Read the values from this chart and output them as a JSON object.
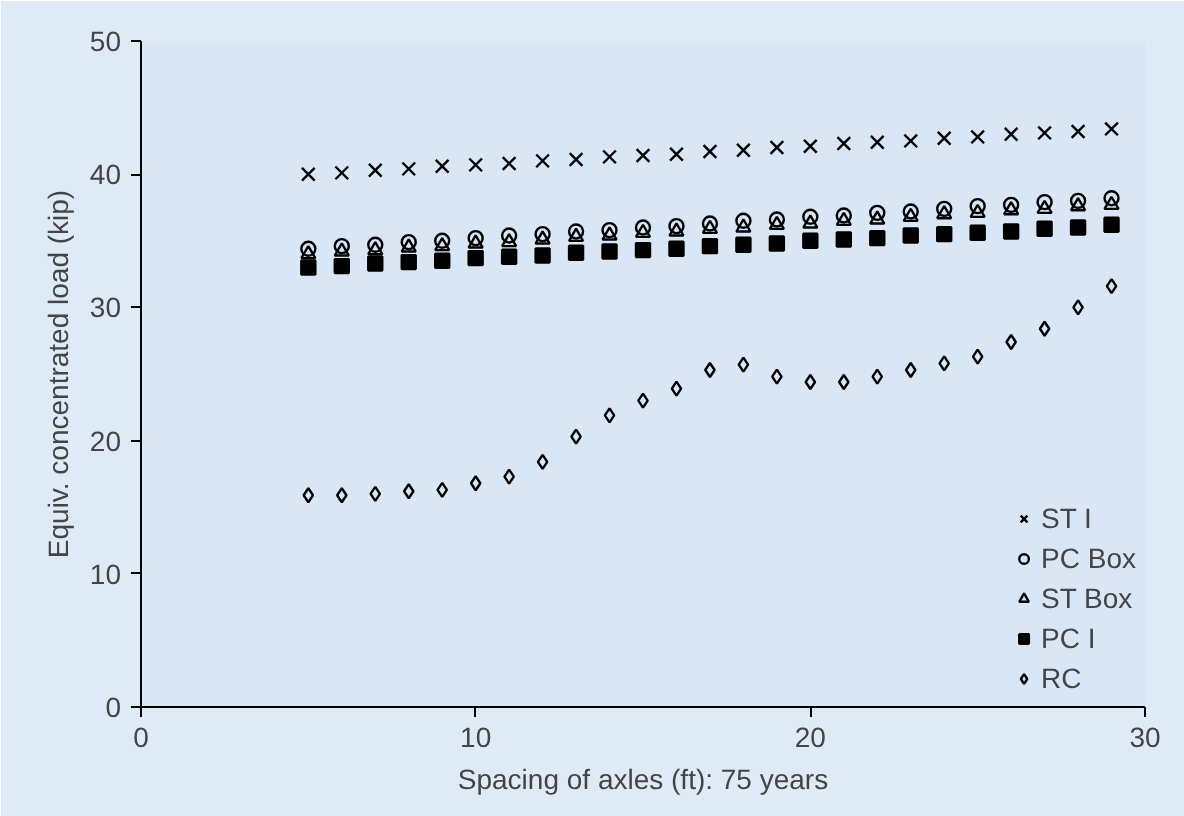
{
  "chart_data": {
    "type": "scatter",
    "xlabel": "Spacing of axles (ft): 75 years",
    "ylabel": "Equiv. concentrated load (kip)",
    "x": [
      5,
      6,
      7,
      8,
      9,
      10,
      11,
      12,
      13,
      14,
      15,
      16,
      17,
      18,
      19,
      20,
      21,
      22,
      23,
      24,
      25,
      26,
      27,
      28,
      29
    ],
    "series": [
      {
        "name": "ST I",
        "color": "#000000",
        "marker": "cross",
        "values": [
          40.0,
          40.1,
          40.3,
          40.4,
          40.6,
          40.7,
          40.8,
          41.0,
          41.1,
          41.3,
          41.4,
          41.5,
          41.7,
          41.8,
          42.0,
          42.1,
          42.3,
          42.4,
          42.5,
          42.7,
          42.8,
          43.0,
          43.1,
          43.2,
          43.4
        ]
      },
      {
        "name": "PC Box",
        "color": "#000000",
        "marker": "circle",
        "values": [
          34.4,
          34.6,
          34.7,
          34.9,
          35.0,
          35.2,
          35.4,
          35.5,
          35.7,
          35.8,
          36.0,
          36.1,
          36.3,
          36.5,
          36.6,
          36.8,
          36.9,
          37.1,
          37.2,
          37.4,
          37.6,
          37.7,
          37.9,
          38.0,
          38.2
        ]
      },
      {
        "name": "ST Box",
        "color": "#000000",
        "marker": "triangle",
        "values": [
          34.0,
          34.2,
          34.3,
          34.5,
          34.6,
          34.8,
          34.9,
          35.1,
          35.3,
          35.4,
          35.6,
          35.7,
          35.9,
          36.0,
          36.2,
          36.3,
          36.5,
          36.6,
          36.8,
          37.0,
          37.1,
          37.3,
          37.4,
          37.6,
          37.7
        ]
      },
      {
        "name": "PC I",
        "color": "#000000",
        "marker": "square",
        "values": [
          33.0,
          33.1,
          33.3,
          33.4,
          33.5,
          33.7,
          33.8,
          33.9,
          34.1,
          34.2,
          34.3,
          34.4,
          34.6,
          34.7,
          34.8,
          35.0,
          35.1,
          35.2,
          35.4,
          35.5,
          35.6,
          35.7,
          35.9,
          36.0,
          36.2
        ]
      },
      {
        "name": "RC",
        "color": "#000000",
        "marker": "diamond",
        "values": [
          15.9,
          15.9,
          16.0,
          16.2,
          16.3,
          16.8,
          17.3,
          18.4,
          20.3,
          21.9,
          23.0,
          23.9,
          25.3,
          25.7,
          24.8,
          24.4,
          24.4,
          24.8,
          25.3,
          25.8,
          26.3,
          27.4,
          28.4,
          30.0,
          31.6
        ]
      }
    ],
    "xlim": [
      0,
      30
    ],
    "xticks": [
      0,
      10,
      20,
      30
    ],
    "ylim": [
      0,
      50
    ],
    "yticks": [
      0,
      10,
      20,
      30,
      40,
      50
    ],
    "grid": false,
    "legend": "bottom right"
  }
}
